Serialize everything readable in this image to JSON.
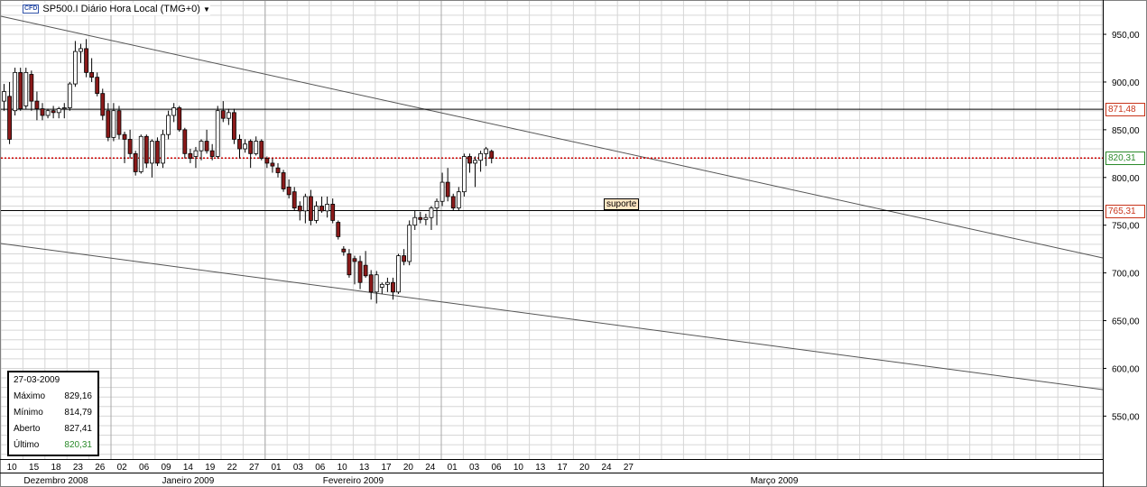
{
  "title": {
    "badge": "CFD",
    "text": "SP500.I Diário Hora Local (TMG+0)",
    "dropdown_icon": "triangle-down-icon"
  },
  "chart_data": {
    "type": "candlestick",
    "symbol": "SP500.I",
    "timeframe": "Diário",
    "ylim": [
      505,
      985
    ],
    "y_ticks": [
      550,
      600,
      650,
      700,
      750,
      800,
      850,
      900,
      950
    ],
    "y_tick_labels": [
      "550,00",
      "600,00",
      "650,00",
      "700,00",
      "750,00",
      "800,00",
      "850,00",
      "900,00",
      "950,00"
    ],
    "x_day_labels": [
      "10",
      "15",
      "18",
      "23",
      "26",
      "02",
      "06",
      "09",
      "14",
      "19",
      "22",
      "27",
      "01",
      "03",
      "06",
      "10",
      "13",
      "17",
      "20",
      "24",
      "01",
      "03",
      "06",
      "10",
      "13",
      "17",
      "20",
      "24",
      "27"
    ],
    "x_month_labels": [
      "Dezembro 2008",
      "Janeiro 2009",
      "Fevereiro 2009",
      "Março 2009"
    ],
    "candles": [
      {
        "o": 880,
        "h": 898,
        "l": 870,
        "c": 890
      },
      {
        "o": 885,
        "h": 900,
        "l": 835,
        "c": 840
      },
      {
        "o": 870,
        "h": 915,
        "l": 865,
        "c": 910
      },
      {
        "o": 910,
        "h": 915,
        "l": 870,
        "c": 872
      },
      {
        "o": 875,
        "h": 915,
        "l": 872,
        "c": 910
      },
      {
        "o": 908,
        "h": 912,
        "l": 870,
        "c": 880
      },
      {
        "o": 880,
        "h": 890,
        "l": 860,
        "c": 872
      },
      {
        "o": 872,
        "h": 878,
        "l": 860,
        "c": 865
      },
      {
        "o": 865,
        "h": 872,
        "l": 862,
        "c": 870
      },
      {
        "o": 870,
        "h": 875,
        "l": 862,
        "c": 868
      },
      {
        "o": 868,
        "h": 874,
        "l": 862,
        "c": 872
      },
      {
        "o": 872,
        "h": 878,
        "l": 862,
        "c": 873
      },
      {
        "o": 873,
        "h": 900,
        "l": 870,
        "c": 898
      },
      {
        "o": 898,
        "h": 943,
        "l": 895,
        "c": 932
      },
      {
        "o": 932,
        "h": 940,
        "l": 920,
        "c": 935
      },
      {
        "o": 935,
        "h": 945,
        "l": 905,
        "c": 910
      },
      {
        "o": 910,
        "h": 925,
        "l": 900,
        "c": 905
      },
      {
        "o": 905,
        "h": 910,
        "l": 885,
        "c": 888
      },
      {
        "o": 888,
        "h": 893,
        "l": 860,
        "c": 865
      },
      {
        "o": 870,
        "h": 878,
        "l": 838,
        "c": 842
      },
      {
        "o": 842,
        "h": 878,
        "l": 838,
        "c": 870
      },
      {
        "o": 870,
        "h": 875,
        "l": 840,
        "c": 845
      },
      {
        "o": 845,
        "h": 848,
        "l": 815,
        "c": 840
      },
      {
        "o": 840,
        "h": 850,
        "l": 820,
        "c": 825
      },
      {
        "o": 825,
        "h": 828,
        "l": 802,
        "c": 806
      },
      {
        "o": 806,
        "h": 845,
        "l": 804,
        "c": 843
      },
      {
        "o": 843,
        "h": 845,
        "l": 810,
        "c": 815
      },
      {
        "o": 815,
        "h": 840,
        "l": 800,
        "c": 838
      },
      {
        "o": 838,
        "h": 842,
        "l": 812,
        "c": 815
      },
      {
        "o": 815,
        "h": 850,
        "l": 810,
        "c": 845
      },
      {
        "o": 845,
        "h": 870,
        "l": 840,
        "c": 865
      },
      {
        "o": 865,
        "h": 878,
        "l": 858,
        "c": 873
      },
      {
        "o": 873,
        "h": 875,
        "l": 848,
        "c": 850
      },
      {
        "o": 850,
        "h": 852,
        "l": 820,
        "c": 825
      },
      {
        "o": 825,
        "h": 830,
        "l": 815,
        "c": 820
      },
      {
        "o": 822,
        "h": 832,
        "l": 810,
        "c": 828
      },
      {
        "o": 828,
        "h": 840,
        "l": 818,
        "c": 838
      },
      {
        "o": 838,
        "h": 850,
        "l": 825,
        "c": 828
      },
      {
        "o": 828,
        "h": 835,
        "l": 818,
        "c": 822
      },
      {
        "o": 822,
        "h": 875,
        "l": 820,
        "c": 870
      },
      {
        "o": 870,
        "h": 880,
        "l": 858,
        "c": 862
      },
      {
        "o": 862,
        "h": 872,
        "l": 855,
        "c": 868
      },
      {
        "o": 868,
        "h": 872,
        "l": 835,
        "c": 840
      },
      {
        "o": 840,
        "h": 845,
        "l": 820,
        "c": 830
      },
      {
        "o": 830,
        "h": 840,
        "l": 826,
        "c": 835
      },
      {
        "o": 838,
        "h": 840,
        "l": 810,
        "c": 825
      },
      {
        "o": 825,
        "h": 843,
        "l": 823,
        "c": 838
      },
      {
        "o": 838,
        "h": 840,
        "l": 818,
        "c": 820
      },
      {
        "o": 820,
        "h": 822,
        "l": 810,
        "c": 815
      },
      {
        "o": 815,
        "h": 820,
        "l": 805,
        "c": 812
      },
      {
        "o": 810,
        "h": 815,
        "l": 800,
        "c": 805
      },
      {
        "o": 805,
        "h": 808,
        "l": 785,
        "c": 788
      },
      {
        "o": 790,
        "h": 798,
        "l": 778,
        "c": 782
      },
      {
        "o": 785,
        "h": 790,
        "l": 765,
        "c": 768
      },
      {
        "o": 770,
        "h": 775,
        "l": 755,
        "c": 765
      },
      {
        "o": 765,
        "h": 783,
        "l": 752,
        "c": 780
      },
      {
        "o": 780,
        "h": 787,
        "l": 750,
        "c": 755
      },
      {
        "o": 755,
        "h": 775,
        "l": 752,
        "c": 770
      },
      {
        "o": 770,
        "h": 780,
        "l": 763,
        "c": 765
      },
      {
        "o": 765,
        "h": 780,
        "l": 758,
        "c": 772
      },
      {
        "o": 772,
        "h": 778,
        "l": 752,
        "c": 755
      },
      {
        "o": 753,
        "h": 755,
        "l": 735,
        "c": 738
      },
      {
        "o": 725,
        "h": 728,
        "l": 718,
        "c": 722
      },
      {
        "o": 720,
        "h": 725,
        "l": 695,
        "c": 698
      },
      {
        "o": 715,
        "h": 718,
        "l": 688,
        "c": 712
      },
      {
        "o": 712,
        "h": 718,
        "l": 683,
        "c": 690
      },
      {
        "o": 708,
        "h": 723,
        "l": 695,
        "c": 697
      },
      {
        "o": 698,
        "h": 703,
        "l": 672,
        "c": 680
      },
      {
        "o": 680,
        "h": 702,
        "l": 668,
        "c": 698
      },
      {
        "o": 685,
        "h": 690,
        "l": 678,
        "c": 688
      },
      {
        "o": 688,
        "h": 695,
        "l": 680,
        "c": 690
      },
      {
        "o": 690,
        "h": 695,
        "l": 672,
        "c": 680
      },
      {
        "o": 680,
        "h": 720,
        "l": 678,
        "c": 718
      },
      {
        "o": 718,
        "h": 725,
        "l": 708,
        "c": 712
      },
      {
        "o": 712,
        "h": 755,
        "l": 708,
        "c": 750
      },
      {
        "o": 750,
        "h": 765,
        "l": 745,
        "c": 758
      },
      {
        "o": 758,
        "h": 764,
        "l": 752,
        "c": 756
      },
      {
        "o": 756,
        "h": 762,
        "l": 750,
        "c": 758
      },
      {
        "o": 758,
        "h": 770,
        "l": 745,
        "c": 768
      },
      {
        "o": 768,
        "h": 778,
        "l": 750,
        "c": 775
      },
      {
        "o": 775,
        "h": 805,
        "l": 770,
        "c": 795
      },
      {
        "o": 795,
        "h": 810,
        "l": 775,
        "c": 780
      },
      {
        "o": 780,
        "h": 783,
        "l": 765,
        "c": 768
      },
      {
        "o": 768,
        "h": 790,
        "l": 765,
        "c": 785
      },
      {
        "o": 785,
        "h": 825,
        "l": 780,
        "c": 822
      },
      {
        "o": 822,
        "h": 825,
        "l": 805,
        "c": 815
      },
      {
        "o": 815,
        "h": 822,
        "l": 790,
        "c": 818
      },
      {
        "o": 818,
        "h": 828,
        "l": 806,
        "c": 825
      },
      {
        "o": 825,
        "h": 832,
        "l": 812,
        "c": 830
      },
      {
        "o": 827.41,
        "h": 829.16,
        "l": 814.79,
        "c": 820.31
      }
    ],
    "horizontal_lines": [
      {
        "price": 871.48,
        "label": "871,48",
        "style": "solid",
        "color": "#000000",
        "label_color": "#c8341a"
      },
      {
        "price": 820.31,
        "label": "820,31",
        "style": "dotted",
        "color": "#cc0000",
        "label_color": "#2a8a2a"
      },
      {
        "price": 765.31,
        "label": "765,31",
        "style": "solid",
        "color": "#000000",
        "label_color": "#c8341a"
      }
    ],
    "annotations": [
      {
        "text": "suporte",
        "price": 765.31
      }
    ],
    "bull_color": "#ffffff",
    "bear_color": "#8b1a1a",
    "grid": true
  },
  "info_box": {
    "date": "27-03-2009",
    "rows": [
      {
        "label": "Máximo",
        "value": "829,16"
      },
      {
        "label": "Mínimo",
        "value": "814,79"
      },
      {
        "label": "Aberto",
        "value": "827,41"
      },
      {
        "label": "Último",
        "value": "820,31"
      }
    ]
  }
}
